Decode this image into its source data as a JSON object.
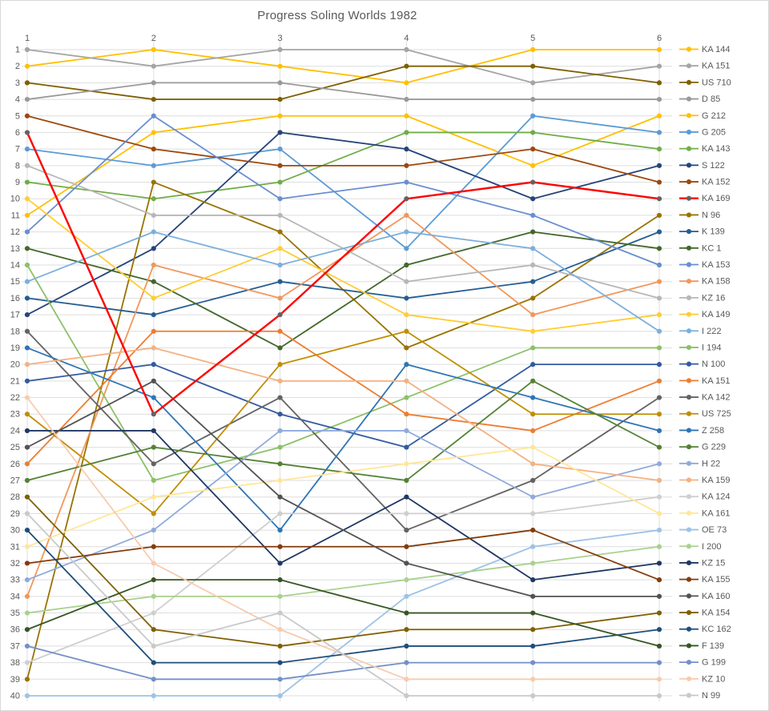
{
  "window": {
    "background": "#FFFFFF",
    "border_color": "#D9D9D9"
  },
  "chart_data": {
    "type": "line",
    "subtype": "bump-rank-progression",
    "title": "Progress Soling Worlds 1982",
    "xlabel": "",
    "ylabel": "",
    "x_ticks": [
      "1",
      "2",
      "3",
      "4",
      "5",
      "6"
    ],
    "x_axis_position": "top",
    "y_ticks": [
      "1",
      "2",
      "3",
      "4",
      "5",
      "6",
      "7",
      "8",
      "9",
      "10",
      "11",
      "12",
      "13",
      "14",
      "15",
      "16",
      "17",
      "18",
      "19",
      "20",
      "21",
      "22",
      "23",
      "24",
      "25",
      "26",
      "27",
      "28",
      "29",
      "30",
      "31",
      "32",
      "33",
      "34",
      "35",
      "36",
      "37",
      "38",
      "39",
      "40"
    ],
    "y_axis": "rank (1 best, inverted, 1 at top)",
    "ylim": [
      1,
      40
    ],
    "grid": "on",
    "gridline_color": "#DEDEDE",
    "tick_label_color": "#595959",
    "title_color": "#595959",
    "legend_position": "right",
    "legend_note": "legend order = final standing after race 6",
    "series": [
      {
        "name": "KA 144",
        "color": "#FFC000",
        "ranks": [
          2,
          1,
          2,
          3,
          1,
          1
        ]
      },
      {
        "name": "KA 151",
        "color": "#A5A5A5",
        "ranks": [
          1,
          2,
          1,
          1,
          3,
          2
        ]
      },
      {
        "name": "US 710",
        "color": "#7F6000",
        "ranks": [
          3,
          4,
          4,
          2,
          2,
          3
        ]
      },
      {
        "name": "D 85",
        "color": "#9A9A9A",
        "ranks": [
          4,
          3,
          3,
          4,
          4,
          4
        ]
      },
      {
        "name": "G 212",
        "color": "#FFC000",
        "ranks": [
          11,
          6,
          5,
          5,
          8,
          5
        ]
      },
      {
        "name": "G 205",
        "color": "#5B9BD5",
        "ranks": [
          7,
          8,
          7,
          13,
          5,
          6
        ]
      },
      {
        "name": "KA 143",
        "color": "#70AD47",
        "ranks": [
          9,
          10,
          9,
          6,
          6,
          7
        ]
      },
      {
        "name": "S 122",
        "color": "#264478",
        "ranks": [
          17,
          13,
          6,
          7,
          10,
          8
        ]
      },
      {
        "name": "KA 152",
        "color": "#9E480E",
        "ranks": [
          5,
          7,
          8,
          8,
          7,
          9
        ]
      },
      {
        "name": "KA 169",
        "color": "#FF0000",
        "marker_color": "#636363",
        "line_width": 2.4,
        "draw_on_top": true,
        "ranks": [
          6,
          23,
          17,
          10,
          9,
          10
        ]
      },
      {
        "name": "N 96",
        "color": "#997300",
        "ranks": [
          39,
          9,
          12,
          19,
          16,
          11
        ]
      },
      {
        "name": "K 139",
        "color": "#255E91",
        "ranks": [
          16,
          17,
          15,
          16,
          15,
          12
        ]
      },
      {
        "name": "KC 1",
        "color": "#43682B",
        "ranks": [
          13,
          15,
          19,
          14,
          12,
          13
        ]
      },
      {
        "name": "KA 153",
        "color": "#698ED0",
        "ranks": [
          12,
          5,
          10,
          9,
          11,
          14
        ]
      },
      {
        "name": "KA 158",
        "color": "#F1975A",
        "ranks": [
          34,
          14,
          16,
          11,
          17,
          15
        ]
      },
      {
        "name": "KZ 16",
        "color": "#B7B7B7",
        "ranks": [
          8,
          11,
          11,
          15,
          14,
          16
        ]
      },
      {
        "name": "KA 149",
        "color": "#FFCD33",
        "ranks": [
          10,
          16,
          13,
          17,
          18,
          17
        ]
      },
      {
        "name": "I 222",
        "color": "#7CAFDD",
        "ranks": [
          15,
          12,
          14,
          12,
          13,
          18
        ]
      },
      {
        "name": "I 194",
        "color": "#8CC168",
        "ranks": [
          14,
          27,
          25,
          22,
          19,
          19
        ]
      },
      {
        "name": "N 100",
        "color": "#335AA1",
        "ranks": [
          21,
          20,
          23,
          25,
          20,
          20
        ]
      },
      {
        "name": "KA 151",
        "color": "#ED7D31",
        "ranks": [
          26,
          18,
          18,
          23,
          24,
          21
        ]
      },
      {
        "name": "KA 142",
        "color": "#636363",
        "ranks": [
          18,
          26,
          22,
          30,
          27,
          22
        ]
      },
      {
        "name": "US 725",
        "color": "#BF8F00",
        "ranks": [
          23,
          29,
          20,
          18,
          23,
          23
        ]
      },
      {
        "name": "Z 258",
        "color": "#2E75B6",
        "ranks": [
          19,
          22,
          30,
          20,
          22,
          24
        ]
      },
      {
        "name": "G 229",
        "color": "#548235",
        "ranks": [
          27,
          25,
          26,
          27,
          21,
          25
        ]
      },
      {
        "name": "H 22",
        "color": "#8FAADC",
        "ranks": [
          33,
          30,
          24,
          24,
          28,
          26
        ]
      },
      {
        "name": "KA 159",
        "color": "#F4B183",
        "ranks": [
          20,
          19,
          21,
          21,
          26,
          27
        ]
      },
      {
        "name": "KA 124",
        "color": "#CFCFCF",
        "ranks": [
          38,
          35,
          29,
          29,
          29,
          28
        ]
      },
      {
        "name": "KA 161",
        "color": "#FFE699",
        "ranks": [
          31,
          28,
          27,
          26,
          25,
          29
        ]
      },
      {
        "name": "OE 73",
        "color": "#9DC3E6",
        "ranks": [
          40,
          40,
          40,
          34,
          31,
          30
        ]
      },
      {
        "name": "I 200",
        "color": "#A9D18E",
        "ranks": [
          35,
          34,
          34,
          33,
          32,
          31
        ]
      },
      {
        "name": "KZ 15",
        "color": "#1F3864",
        "ranks": [
          24,
          24,
          32,
          28,
          33,
          32
        ]
      },
      {
        "name": "KA 155",
        "color": "#843C0C",
        "ranks": [
          32,
          31,
          31,
          31,
          30,
          33
        ]
      },
      {
        "name": "KA 160",
        "color": "#525252",
        "ranks": [
          25,
          21,
          28,
          32,
          34,
          34
        ]
      },
      {
        "name": "KA 154",
        "color": "#7F6000",
        "ranks": [
          28,
          36,
          37,
          36,
          36,
          35
        ]
      },
      {
        "name": "KC 162",
        "color": "#1F4E79",
        "ranks": [
          30,
          38,
          38,
          37,
          37,
          36
        ]
      },
      {
        "name": "F 139",
        "color": "#375623",
        "ranks": [
          36,
          33,
          33,
          35,
          35,
          37
        ]
      },
      {
        "name": "G 199",
        "color": "#7490C8",
        "ranks": [
          37,
          39,
          39,
          38,
          38,
          38
        ]
      },
      {
        "name": "KZ 10",
        "color": "#F8CBAD",
        "ranks": [
          22,
          32,
          36,
          39,
          39,
          39
        ]
      },
      {
        "name": "N 99",
        "color": "#C9C9C9",
        "ranks": [
          29,
          37,
          35,
          40,
          40,
          40
        ]
      }
    ]
  }
}
